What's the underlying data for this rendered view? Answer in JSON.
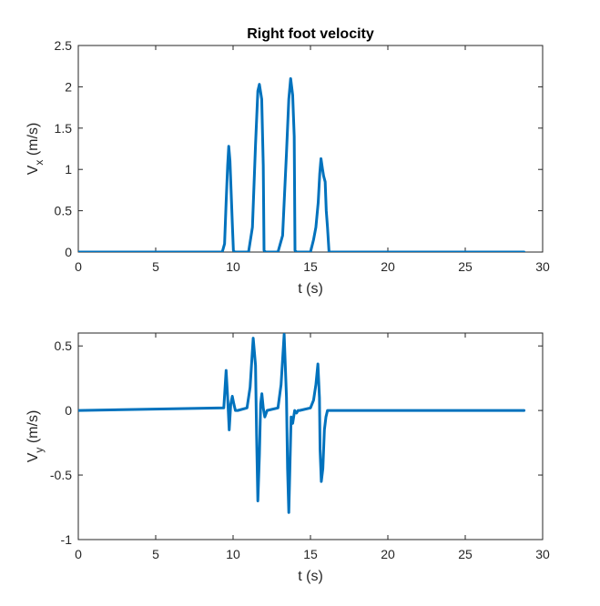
{
  "chart_data": [
    {
      "type": "line",
      "title": "Right foot velocity",
      "xlabel": "t (s)",
      "ylabel_main": "V",
      "ylabel_sub": "x",
      "ylabel_unit": " (m/s)",
      "xlim": [
        0,
        30
      ],
      "ylim": [
        0,
        2.5
      ],
      "xticks": [
        0,
        5,
        10,
        15,
        20,
        25,
        30
      ],
      "xtick_labels": [
        "0",
        "5",
        "10",
        "15",
        "20",
        "25",
        "30"
      ],
      "yticks": [
        0,
        0.5,
        1,
        1.5,
        2,
        2.5
      ],
      "ytick_labels": [
        "0",
        "0.5",
        "1",
        "1.5",
        "2",
        "2.5"
      ],
      "grid": false,
      "color": "#0072BD",
      "series": [
        {
          "x": [
            0,
            9.3,
            9.45,
            9.55,
            9.65,
            9.72,
            9.8,
            9.88,
            9.95,
            10.02,
            10.1,
            10.2,
            11.0,
            11.25,
            11.45,
            11.6,
            11.7,
            11.85,
            11.95,
            12.0,
            12.1,
            12.9,
            13.2,
            13.45,
            13.6,
            13.72,
            13.85,
            13.95,
            14.0,
            14.1,
            15.0,
            15.2,
            15.35,
            15.5,
            15.6,
            15.68,
            15.78,
            15.85,
            15.95,
            16.02,
            16.1,
            16.2,
            28.8
          ],
          "y": [
            0,
            0,
            0.1,
            0.6,
            1.05,
            1.28,
            1.1,
            0.7,
            0.35,
            0.02,
            0,
            0,
            0,
            0.3,
            1.3,
            1.95,
            2.03,
            1.85,
            1.05,
            0.02,
            0,
            0,
            0.2,
            1.2,
            1.85,
            2.1,
            1.9,
            1.4,
            0.02,
            0,
            0,
            0.15,
            0.3,
            0.6,
            0.95,
            1.13,
            1.0,
            0.92,
            0.85,
            0.5,
            0.3,
            0,
            0
          ]
        }
      ]
    },
    {
      "type": "line",
      "xlabel": "t (s)",
      "ylabel_main": "V",
      "ylabel_sub": "y",
      "ylabel_unit": " (m/s)",
      "xlim": [
        0,
        30
      ],
      "ylim": [
        -1,
        0.6
      ],
      "xticks": [
        0,
        5,
        10,
        15,
        20,
        25,
        30
      ],
      "xtick_labels": [
        "0",
        "5",
        "10",
        "15",
        "20",
        "25",
        "30"
      ],
      "yticks": [
        -1,
        -0.5,
        0,
        0.5
      ],
      "ytick_labels": [
        "-1",
        "-0.5",
        "0",
        "0.5"
      ],
      "grid": false,
      "color": "#0072BD",
      "series": [
        {
          "x": [
            0,
            9.4,
            9.55,
            9.65,
            9.75,
            9.85,
            9.95,
            10.05,
            10.15,
            10.3,
            10.9,
            11.1,
            11.3,
            11.45,
            11.52,
            11.6,
            11.7,
            11.78,
            11.86,
            11.95,
            12.05,
            12.2,
            12.9,
            13.1,
            13.3,
            13.45,
            13.52,
            13.6,
            13.68,
            13.75,
            13.85,
            13.98,
            14.1,
            14.2,
            14.3,
            15.0,
            15.2,
            15.35,
            15.48,
            15.58,
            15.62,
            15.7,
            15.8,
            15.9,
            16.0,
            16.1,
            28.8
          ],
          "y": [
            0,
            0.02,
            0.31,
            0.1,
            -0.15,
            0.05,
            0.11,
            0.05,
            0,
            0,
            0.02,
            0.18,
            0.56,
            0.35,
            -0.2,
            -0.7,
            -0.35,
            0.05,
            0.13,
            0.02,
            -0.05,
            0,
            0.02,
            0.2,
            0.59,
            0.1,
            -0.45,
            -0.79,
            -0.4,
            -0.05,
            -0.1,
            0,
            -0.02,
            0,
            0,
            0.02,
            0.08,
            0.2,
            0.36,
            0.1,
            -0.3,
            -0.55,
            -0.45,
            -0.15,
            -0.05,
            0,
            0
          ]
        }
      ]
    }
  ]
}
